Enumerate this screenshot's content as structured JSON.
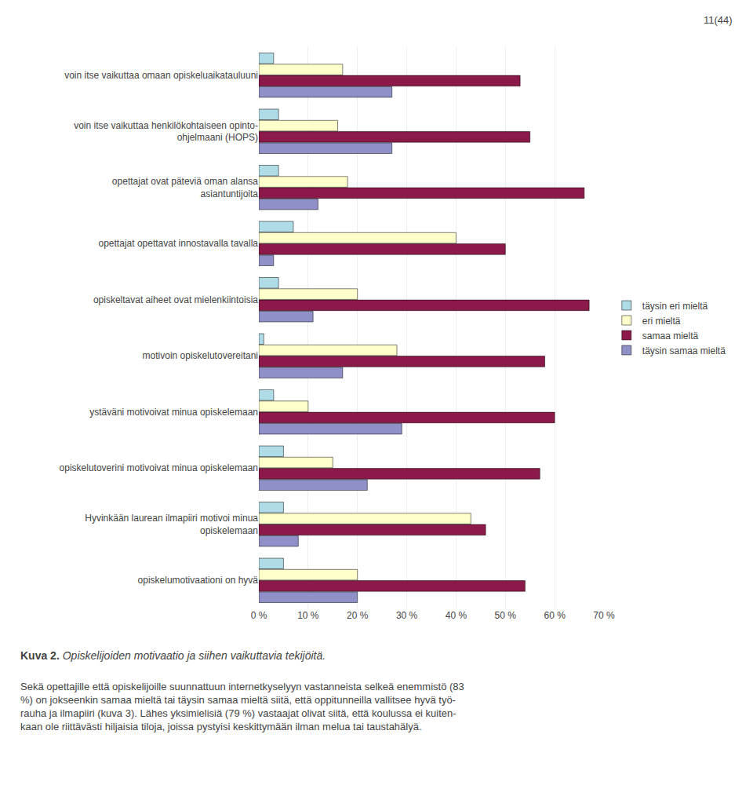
{
  "chart_data": {
    "type": "bar",
    "orientation": "horizontal",
    "categories": [
      "voin itse vaikuttaa omaan opiskeluaikatauluuni",
      "voin itse vaikuttaa henkilökohtaiseen opinto-\nohjelmaani (HOPS)",
      "opettajat ovat päteviä oman alansa\nasiantuntijoita",
      "opettajat opettavat innostavalla tavalla",
      "opiskeltavat aiheet ovat mielenkiintoisia",
      "motivoin opiskelutovereitani",
      "ystäväni motivoivat minua opiskelemaan",
      "opiskelutoverini motivoivat minua opiskelemaan",
      "Hyvinkään laurean ilmapiiri motivoi minua\nopiskelemaan",
      "opiskelumotivaationi on hyvä"
    ],
    "series": [
      {
        "name": "täysin eri mieltä",
        "color": "#b0dce8",
        "values": [
          3,
          4,
          4,
          7,
          4,
          1,
          3,
          5,
          5,
          5
        ]
      },
      {
        "name": "eri mieltä",
        "color": "#ffffcc",
        "values": [
          17,
          16,
          18,
          40,
          20,
          28,
          10,
          15,
          43,
          20
        ]
      },
      {
        "name": "samaa mieltä",
        "color": "#8b1a4a",
        "values": [
          53,
          55,
          66,
          50,
          67,
          58,
          60,
          57,
          46,
          54
        ]
      },
      {
        "name": "täysin samaa mieltä",
        "color": "#9090c8",
        "values": [
          27,
          27,
          12,
          3,
          11,
          17,
          29,
          22,
          8,
          20
        ]
      }
    ],
    "xlim": [
      0,
      70
    ],
    "xticks": [
      {
        "value": 0,
        "label": "0 %"
      },
      {
        "value": 10,
        "label": "10 %"
      },
      {
        "value": 20,
        "label": "20 %"
      },
      {
        "value": 30,
        "label": "30 %"
      },
      {
        "value": 40,
        "label": "40 %"
      },
      {
        "value": 50,
        "label": "50 %"
      },
      {
        "value": 60,
        "label": "60 %"
      },
      {
        "value": 70,
        "label": "70 %"
      }
    ],
    "grid": true,
    "legend": "right",
    "annotations": [
      "11(44)",
      "Kuva 2.",
      "Opiskelijoiden motivaatio ja siihen vaikuttavia tekijöitä.",
      "Sekä opettajille että opiskelijoille suunnattuun internetkyselyyn vastanneista selkeä enemmistö (83",
      "%) on jokseenkin samaa mieltä tai täysin samaa mieltä siitä, että oppitunneilla vallitsee hyvä työ-",
      "rauha ja ilmapiiri (kuva 3). Lähes yksimielisiä (79 %) vastaajat olivat siitä, että koulussa ei kuiten-",
      "kaan ole riittävästi hiljaisia tiloja, joissa pystyisi keskittymään ilman melua tai taustahälyä."
    ]
  }
}
